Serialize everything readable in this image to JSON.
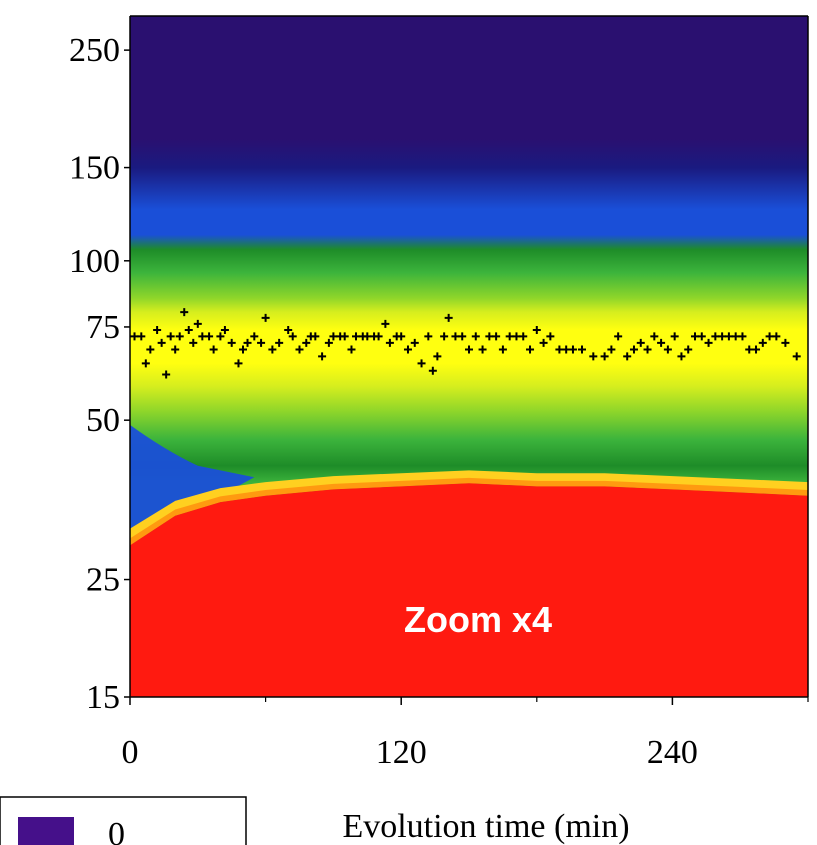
{
  "chart_data": {
    "type": "heatmap",
    "title": "",
    "xlabel": "Evolution time (min)",
    "ylabel": "",
    "xlim": [
      0,
      300
    ],
    "ylim": [
      15,
      290
    ],
    "y_scale": "log",
    "x_ticks": [
      0,
      120,
      240
    ],
    "y_ticks": [
      15,
      25,
      50,
      75,
      100,
      150,
      250
    ],
    "annotation": "Zoom x4",
    "legend": {
      "entries": [
        {
          "label": "0",
          "color": "#45108a"
        }
      ],
      "placement": "bottom-left"
    },
    "colormap": [
      "#2a1070",
      "#1a1a80",
      "#1a4fd8",
      "#1e8c28",
      "#3cb43c",
      "#8fd62a",
      "#d6ee1e",
      "#ffff10",
      "#ff9a10",
      "#ff1a10"
    ],
    "color_bands": [
      {
        "y_range": [
          28,
          31
        ],
        "color": "#ff1a10",
        "note": "saturated region below boundary"
      },
      {
        "y_range": [
          31,
          38
        ],
        "color": "#ffb010"
      },
      {
        "y_range": [
          38,
          48
        ],
        "color": "#3cb43c"
      },
      {
        "y_range": [
          48,
          60
        ],
        "color": "#8fd62a"
      },
      {
        "y_range": [
          60,
          80
        ],
        "color": "#ffff10"
      },
      {
        "y_range": [
          80,
          110
        ],
        "color": "#3cb43c"
      },
      {
        "y_range": [
          110,
          150
        ],
        "color": "#1a4fd8"
      },
      {
        "y_range": [
          150,
          290
        ],
        "color": "#2a1070"
      }
    ],
    "boundary_curve": {
      "description": "lower edge of green/yellow band, above the red region",
      "x": [
        0,
        20,
        40,
        60,
        90,
        120,
        150,
        180,
        210,
        240,
        270,
        300
      ],
      "y": [
        29,
        33,
        35,
        36,
        37,
        37.5,
        38,
        37.5,
        37.5,
        37,
        36.5,
        36
      ]
    },
    "marker_series": {
      "name": "",
      "marker": "+",
      "x": [
        2,
        5,
        7,
        9,
        12,
        14,
        16,
        18,
        20,
        22,
        24,
        26,
        28,
        30,
        32,
        35,
        37,
        40,
        42,
        45,
        48,
        50,
        52,
        55,
        58,
        60,
        63,
        66,
        70,
        72,
        75,
        78,
        80,
        82,
        85,
        88,
        90,
        93,
        95,
        98,
        100,
        103,
        105,
        108,
        110,
        113,
        115,
        118,
        120,
        123,
        126,
        129,
        132,
        134,
        136,
        139,
        141,
        144,
        147,
        150,
        153,
        156,
        159,
        162,
        165,
        168,
        171,
        174,
        177,
        180,
        183,
        186,
        190,
        193,
        196,
        200,
        205,
        210,
        213,
        216,
        220,
        223,
        226,
        229,
        232,
        235,
        238,
        241,
        244,
        247,
        250,
        253,
        256,
        259,
        262,
        265,
        268,
        271,
        274,
        277,
        280,
        283,
        286,
        290,
        295
      ],
      "y": [
        72,
        72,
        64,
        68,
        74,
        70,
        61,
        72,
        68,
        72,
        80,
        74,
        70,
        76,
        72,
        72,
        68,
        72,
        74,
        70,
        64,
        68,
        70,
        72,
        70,
        78,
        68,
        70,
        74,
        72,
        68,
        70,
        72,
        72,
        66,
        70,
        72,
        72,
        72,
        68,
        72,
        72,
        72,
        72,
        72,
        76,
        70,
        72,
        72,
        68,
        70,
        64,
        72,
        62,
        66,
        72,
        78,
        72,
        72,
        68,
        72,
        68,
        72,
        72,
        68,
        72,
        72,
        72,
        68,
        74,
        70,
        72,
        68,
        68,
        68,
        68,
        66,
        66,
        68,
        72,
        66,
        68,
        70,
        68,
        72,
        70,
        68,
        72,
        66,
        68,
        72,
        72,
        70,
        72,
        72,
        72,
        72,
        72,
        68,
        68,
        70,
        72,
        72,
        70,
        66
      ]
    }
  }
}
